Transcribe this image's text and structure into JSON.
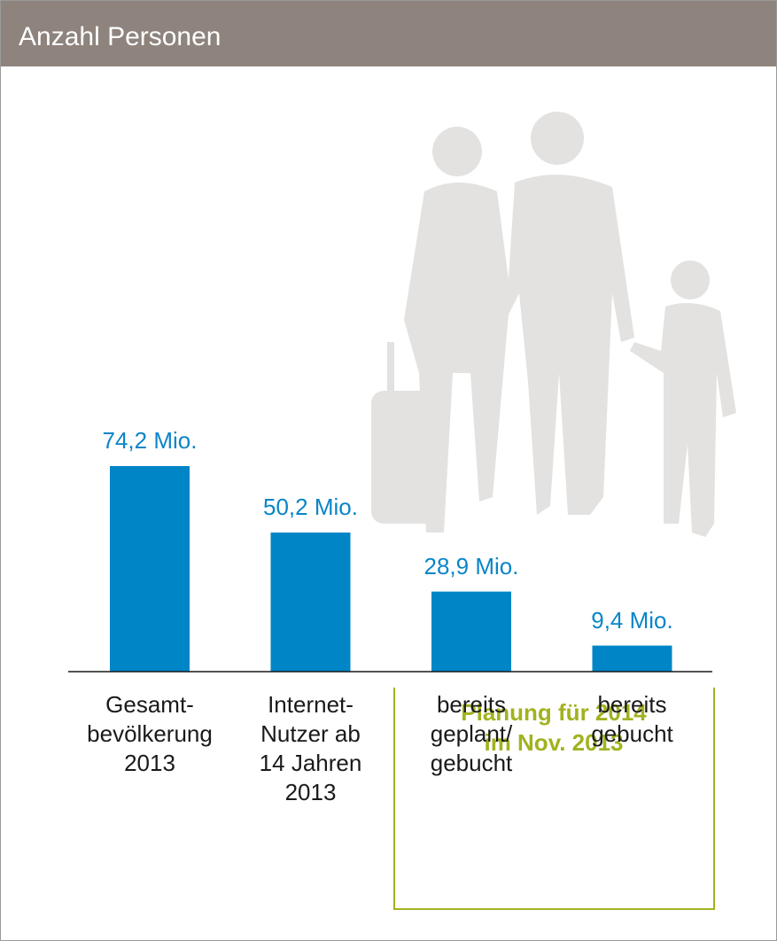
{
  "chart_data": {
    "type": "bar",
    "title": "Anzahl Personen",
    "categories": [
      "Gesamt-\nbevölkerung\n2013",
      "Internet-\nNutzer ab\n14 Jahren\n2013",
      "bereits\ngeplant/\ngebucht",
      "bereits\ngebucht"
    ],
    "values": [
      74.2,
      50.2,
      28.9,
      9.4
    ],
    "value_labels": [
      "74,2 Mio.",
      "50,2 Mio.",
      "28,9 Mio.",
      "9,4 Mio."
    ],
    "color": "#0085c7",
    "annotation": "Planung für 2014\nim Nov. 2013",
    "annotation_color": "#a2b220"
  }
}
